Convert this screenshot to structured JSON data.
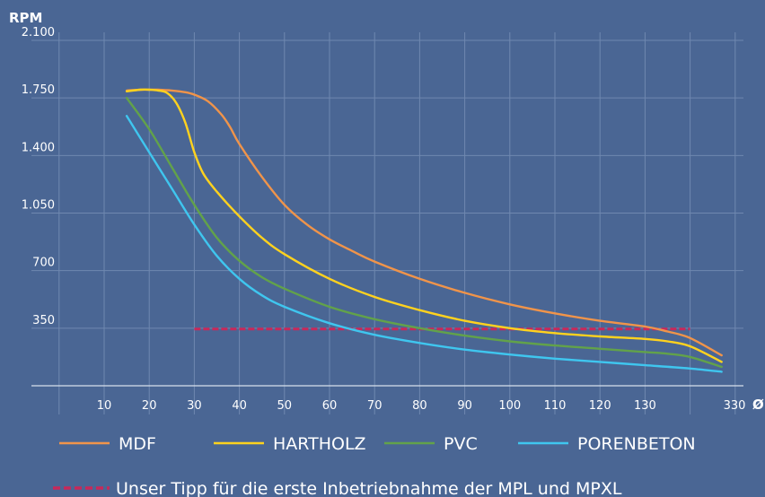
{
  "chart_data": {
    "type": "line",
    "ylabel": "RPM",
    "xlabel": "Ø",
    "ylim": [
      0,
      2100
    ],
    "y_ticks": [
      350,
      700,
      1050,
      1400,
      1750,
      2100
    ],
    "y_tick_labels": [
      "350",
      "700",
      "1.050",
      "1.400",
      "1.750",
      "2.100"
    ],
    "x_tick_labels": [
      "10",
      "20",
      "30",
      "40",
      "50",
      "60",
      "70",
      "80",
      "90",
      "100",
      "110",
      "120",
      "130",
      "330"
    ],
    "grid": true,
    "legend_position": "bottom",
    "series": [
      {
        "name": "MDF",
        "color": "#f0944a",
        "x": [
          15,
          18,
          20,
          22,
          25,
          28,
          30,
          33,
          36,
          38,
          40,
          45,
          50,
          55,
          60,
          65,
          70,
          80,
          90,
          100,
          110,
          120,
          130,
          135,
          140,
          147
        ],
        "y": [
          1795,
          1800,
          1800,
          1800,
          1795,
          1785,
          1770,
          1730,
          1650,
          1570,
          1470,
          1270,
          1100,
          980,
          890,
          820,
          755,
          650,
          565,
          495,
          440,
          395,
          360,
          330,
          290,
          185
        ]
      },
      {
        "name": "HARTHOLZ",
        "color": "#ffd21e",
        "x": [
          15,
          18,
          20,
          22,
          24,
          26,
          28,
          30,
          32,
          35,
          40,
          45,
          50,
          60,
          70,
          80,
          90,
          100,
          110,
          120,
          130,
          135,
          140,
          147
        ],
        "y": [
          1790,
          1800,
          1800,
          1795,
          1780,
          1720,
          1600,
          1420,
          1290,
          1180,
          1030,
          900,
          800,
          650,
          540,
          460,
          395,
          350,
          320,
          300,
          285,
          270,
          240,
          145
        ]
      },
      {
        "name": "PVC",
        "color": "#62a24a",
        "x": [
          15,
          20,
          25,
          30,
          35,
          40,
          45,
          50,
          60,
          70,
          80,
          90,
          100,
          110,
          120,
          130,
          135,
          140,
          147
        ],
        "y": [
          1750,
          1560,
          1330,
          1100,
          900,
          760,
          660,
          590,
          480,
          405,
          350,
          305,
          270,
          245,
          225,
          205,
          195,
          175,
          115
        ]
      },
      {
        "name": "PORENBETON",
        "color": "#3fc6ef",
        "x": [
          15,
          20,
          25,
          30,
          35,
          40,
          45,
          50,
          60,
          70,
          80,
          90,
          100,
          110,
          120,
          130,
          140,
          147
        ],
        "y": [
          1640,
          1420,
          1200,
          980,
          790,
          650,
          550,
          480,
          380,
          310,
          260,
          220,
          190,
          165,
          145,
          125,
          105,
          85
        ]
      }
    ],
    "reference_line": {
      "label": "Unser Tipp für die erste Inbetriebnahme der MPL und MPXL",
      "color": "#c8285a",
      "x": [
        30,
        140
      ],
      "y": 345
    }
  }
}
